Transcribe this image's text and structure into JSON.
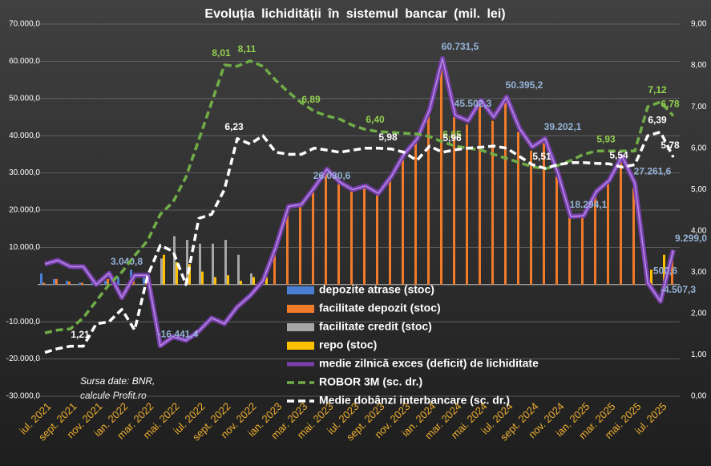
{
  "chart_data": {
    "type": "combo",
    "title": "Evoluția lichidității în sistemul bancar (mil. lei)",
    "annotation": [
      "Sursa date: BNR,",
      "calcule Profit.ro"
    ],
    "legend": "inside-bottom-center",
    "grid": true,
    "categories": [
      "iul. 2021",
      null,
      "sept. 2021",
      null,
      "nov. 2021",
      null,
      "ian. 2022",
      null,
      "mar. 2022",
      null,
      "mai. 2022",
      null,
      "iul. 2022",
      null,
      "sept. 2022",
      null,
      "nov. 2022",
      null,
      "ian. 2023",
      null,
      "mar. 2023",
      null,
      "mai. 2023",
      null,
      "iul. 2023",
      null,
      "sept. 2023",
      null,
      "nov. 2023",
      null,
      "ian. 2024",
      null,
      "mar. 2024",
      null,
      "mai. 2024",
      null,
      "iul. 2024",
      null,
      "sept. 2024",
      null,
      "nov. 2024",
      null,
      "ian. 2025",
      null,
      "mar. 2025",
      null,
      "mai. 2025",
      null,
      "iul. 2025",
      null
    ],
    "ylim": [
      -30000,
      70000
    ],
    "yticks": [
      {
        "value": -30000,
        "label": "-30.000,0"
      },
      {
        "value": -20000,
        "label": "-20.000,0"
      },
      {
        "value": -10000,
        "label": "-10.000,0"
      },
      {
        "value": 0,
        "label": "-"
      },
      {
        "value": 10000,
        "label": "10.000,0"
      },
      {
        "value": 20000,
        "label": "20.000,0"
      },
      {
        "value": 30000,
        "label": "30.000,0"
      },
      {
        "value": 40000,
        "label": "40.000,0"
      },
      {
        "value": 50000,
        "label": "50.000,0"
      },
      {
        "value": 60000,
        "label": "60.000,0"
      },
      {
        "value": 70000,
        "label": "70.000,0"
      }
    ],
    "y2lim": [
      0,
      9
    ],
    "y2ticks": [
      {
        "value": 0,
        "label": "0,00"
      },
      {
        "value": 1,
        "label": "1,00"
      },
      {
        "value": 2,
        "label": "2,00"
      },
      {
        "value": 3,
        "label": "3,00"
      },
      {
        "value": 4,
        "label": "4,00"
      },
      {
        "value": 5,
        "label": "5,00"
      },
      {
        "value": 6,
        "label": "6,00"
      },
      {
        "value": 7,
        "label": "7,00"
      },
      {
        "value": 8,
        "label": "8,00"
      },
      {
        "value": 9,
        "label": "9,00"
      }
    ],
    "series": [
      {
        "name": "depozite atrase (stoc)",
        "kind": "bar",
        "color": "#4a7fd4",
        "values": [
          3000,
          1500,
          1000,
          500,
          1500,
          1000,
          2000,
          4000,
          3000,
          0,
          0,
          0,
          0,
          0,
          0,
          0,
          0,
          0,
          0,
          0,
          0,
          0,
          0,
          0,
          0,
          0,
          0,
          0,
          0,
          0,
          0,
          0,
          0,
          0,
          0,
          0,
          0,
          0,
          0,
          0,
          0,
          0,
          0,
          0,
          0,
          0,
          0,
          0,
          0,
          0
        ]
      },
      {
        "name": "facilitate depozit (stoc)",
        "kind": "bar",
        "color": "#f07b2a",
        "values": [
          500,
          1500,
          800,
          500,
          0,
          1500,
          0,
          1000,
          800,
          0,
          0,
          0,
          0,
          0,
          0,
          0,
          0,
          1500,
          9000,
          20000,
          21000,
          25000,
          30000,
          27000,
          25000,
          26000,
          24000,
          28000,
          34000,
          38000,
          46000,
          58000,
          45000,
          43000,
          48000,
          44000,
          49000,
          41000,
          36000,
          38000,
          29000,
          18000,
          18000,
          24000,
          27000,
          33000,
          26000,
          6000,
          0,
          8000
        ]
      },
      {
        "name": "facilitate credit (stoc)",
        "kind": "bar",
        "color": "#a6a6a6",
        "values": [
          0,
          0,
          0,
          0,
          0,
          0,
          0,
          0,
          0,
          7000,
          13000,
          12000,
          11000,
          11000,
          12000,
          8000,
          3000,
          0,
          0,
          0,
          0,
          0,
          0,
          0,
          0,
          0,
          0,
          0,
          0,
          0,
          0,
          0,
          0,
          0,
          0,
          0,
          0,
          0,
          0,
          0,
          0,
          0,
          0,
          0,
          0,
          0,
          0,
          0,
          0,
          0
        ]
      },
      {
        "name": "repo (stoc)",
        "kind": "bar",
        "color": "#ffc000",
        "values": [
          0,
          0,
          0,
          0,
          0,
          0,
          0,
          0,
          0,
          8000,
          6000,
          5500,
          3500,
          2000,
          2500,
          1000,
          2000,
          2000,
          0,
          0,
          0,
          0,
          0,
          0,
          0,
          0,
          0,
          0,
          0,
          0,
          0,
          0,
          0,
          0,
          0,
          0,
          0,
          0,
          0,
          0,
          0,
          0,
          0,
          0,
          0,
          0,
          0,
          4000,
          8000,
          0
        ]
      },
      {
        "name": "medie zilnică exces (deficit) de lichiditate",
        "kind": "line",
        "color": "#7b3fb0",
        "label_color": "#95b3d7",
        "values": [
          5500,
          6500,
          4800,
          4800,
          0,
          3040.8,
          -3500,
          2500,
          2500,
          -16441.4,
          -14000,
          -15000,
          -12500,
          -9000,
          -10500,
          -6000,
          -3000,
          1000,
          10000,
          21000,
          21500,
          26030.6,
          31000,
          27500,
          25500,
          26500,
          24500,
          29000,
          35000,
          39000,
          47000,
          60731.5,
          45502.3,
          44000,
          49500,
          45000,
          50395.2,
          42000,
          37000,
          39202.1,
          30000,
          18294.1,
          18500,
          25000,
          28000,
          34500,
          27261.6,
          500.6,
          -4507.3,
          9299.0
        ],
        "value_labels": [
          null,
          null,
          null,
          null,
          null,
          "3.040,8",
          null,
          null,
          null,
          "-16.441,4",
          null,
          null,
          null,
          null,
          null,
          null,
          null,
          null,
          null,
          null,
          null,
          "26.030,6",
          null,
          null,
          null,
          null,
          null,
          null,
          null,
          null,
          null,
          "60.731,5",
          "45.502,3",
          null,
          null,
          null,
          "50.395,2",
          null,
          null,
          "39.202,1",
          null,
          "18.294,1",
          null,
          null,
          null,
          null,
          "27.261,6",
          "500,6",
          "-4.507,3",
          "9.299,0"
        ]
      },
      {
        "name": "ROBOR 3M (sc. dr.)",
        "kind": "line",
        "axis": "y2",
        "dash": true,
        "color": "#70ad47",
        "label_color": "#92d050",
        "values": [
          1.53,
          1.6,
          1.63,
          1.9,
          2.3,
          2.7,
          3.0,
          3.4,
          3.76,
          4.4,
          4.7,
          5.3,
          6.2,
          7.1,
          8.01,
          7.98,
          8.11,
          7.98,
          7.64,
          7.35,
          7.1,
          6.89,
          6.78,
          6.7,
          6.55,
          6.45,
          6.4,
          6.38,
          6.36,
          6.34,
          6.28,
          6.15,
          6.05,
          6.0,
          5.95,
          5.85,
          5.75,
          5.65,
          5.55,
          5.5,
          5.58,
          5.7,
          5.85,
          5.93,
          5.93,
          5.93,
          5.93,
          7.0,
          7.12,
          6.78
        ],
        "value_labels": [
          null,
          null,
          null,
          null,
          null,
          null,
          null,
          null,
          null,
          null,
          null,
          null,
          null,
          null,
          "8,01",
          null,
          "8,11",
          null,
          null,
          null,
          null,
          "6,89",
          null,
          null,
          null,
          null,
          "6,40",
          null,
          null,
          null,
          null,
          null,
          "6,05",
          null,
          null,
          null,
          null,
          null,
          null,
          null,
          null,
          null,
          null,
          null,
          "5,93",
          null,
          null,
          null,
          "7,12",
          "6,78"
        ]
      },
      {
        "name": "Medie dobânzi interbancare (sc. dr.)",
        "kind": "line",
        "axis": "y2",
        "dash": true,
        "color": "#ffffff",
        "label_color": "#ffffff",
        "values": [
          1.06,
          1.15,
          1.21,
          1.21,
          1.75,
          1.8,
          2.1,
          1.6,
          2.9,
          3.65,
          3.5,
          2.7,
          4.3,
          4.4,
          5.0,
          6.23,
          6.1,
          6.3,
          5.9,
          5.85,
          5.85,
          6.0,
          5.95,
          5.9,
          5.95,
          6.0,
          6.0,
          5.98,
          5.9,
          5.7,
          6.05,
          5.9,
          5.96,
          6.0,
          6.02,
          6.05,
          6.0,
          5.8,
          5.6,
          5.51,
          5.6,
          5.65,
          5.65,
          5.63,
          5.62,
          5.54,
          5.6,
          6.3,
          6.39,
          5.78
        ],
        "value_labels": [
          null,
          null,
          null,
          "1,21",
          null,
          null,
          null,
          null,
          null,
          null,
          null,
          null,
          null,
          null,
          null,
          "6,23",
          null,
          null,
          null,
          null,
          null,
          null,
          null,
          null,
          null,
          null,
          null,
          "5,98",
          null,
          null,
          null,
          null,
          "5,96",
          null,
          null,
          null,
          null,
          null,
          null,
          "5,51",
          null,
          null,
          null,
          null,
          null,
          "5,54",
          null,
          null,
          "6,39",
          "5,78"
        ]
      }
    ]
  }
}
